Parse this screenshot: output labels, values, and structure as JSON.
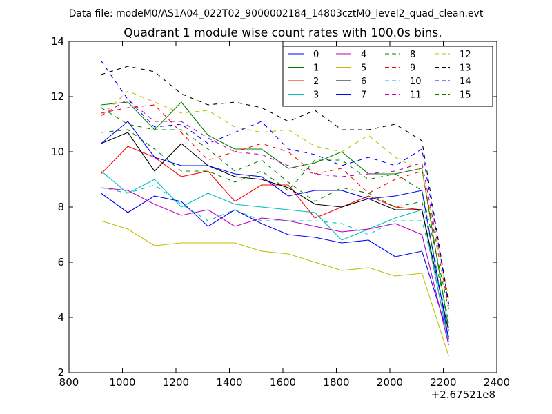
{
  "chart_data": {
    "type": "line",
    "suptitle": "Data file: modeM0/AS1A04_022T02_9000002184_14803cztM0_level2_quad_clean.evt",
    "title": "Quadrant 1 module wise count rates with 100.0s bins.",
    "xlabel": "",
    "ylabel": "",
    "x_offset_label": "+2.67521e8",
    "xlim": [
      800,
      2400
    ],
    "ylim": [
      2,
      14
    ],
    "xticks": [
      800,
      1000,
      1200,
      1400,
      1600,
      1800,
      2000,
      2200,
      2400
    ],
    "yticks": [
      2,
      4,
      6,
      8,
      10,
      12,
      14
    ],
    "legend_position": "top-right",
    "legend_columns": 4,
    "x": [
      920,
      1020,
      1120,
      1220,
      1320,
      1420,
      1520,
      1620,
      1720,
      1820,
      1920,
      2020,
      2120,
      2220
    ],
    "series": [
      {
        "name": "0",
        "color": "#0000ff",
        "dash": "solid",
        "values": [
          8.5,
          7.8,
          8.4,
          8.2,
          7.3,
          7.9,
          7.4,
          7.0,
          6.9,
          6.7,
          6.8,
          6.2,
          6.4,
          3.3
        ]
      },
      {
        "name": "1",
        "color": "#008000",
        "dash": "solid",
        "values": [
          11.7,
          11.8,
          10.8,
          11.8,
          10.6,
          10.1,
          10.1,
          9.4,
          9.6,
          10.0,
          9.2,
          9.2,
          9.4,
          3.6
        ]
      },
      {
        "name": "2",
        "color": "#ff0000",
        "dash": "solid",
        "values": [
          9.2,
          10.2,
          9.8,
          9.1,
          9.3,
          8.2,
          8.8,
          8.8,
          7.6,
          8.0,
          8.4,
          8.0,
          7.9,
          3.1
        ]
      },
      {
        "name": "3",
        "color": "#00bfbf",
        "dash": "solid",
        "values": [
          9.3,
          8.5,
          9.0,
          8.0,
          8.5,
          8.1,
          8.0,
          7.9,
          7.8,
          6.8,
          7.2,
          7.6,
          7.9,
          3.1
        ]
      },
      {
        "name": "4",
        "color": "#bf00bf",
        "dash": "solid",
        "values": [
          8.7,
          8.6,
          8.1,
          7.7,
          7.9,
          7.3,
          7.6,
          7.5,
          7.3,
          7.1,
          7.2,
          7.4,
          7.0,
          3.0
        ]
      },
      {
        "name": "5",
        "color": "#bfbf00",
        "dash": "solid",
        "values": [
          7.5,
          7.2,
          6.6,
          6.7,
          6.7,
          6.7,
          6.4,
          6.3,
          6.0,
          5.7,
          5.8,
          5.5,
          5.6,
          2.6
        ]
      },
      {
        "name": "6",
        "color": "#000000",
        "dash": "solid",
        "values": [
          10.3,
          10.7,
          9.3,
          10.3,
          9.5,
          9.1,
          9.0,
          8.7,
          8.1,
          8.0,
          8.3,
          7.9,
          7.9,
          3.5
        ]
      },
      {
        "name": "7",
        "color": "#0000ff",
        "dash": "solid",
        "values": [
          10.3,
          11.1,
          9.8,
          9.5,
          9.5,
          9.2,
          9.1,
          8.4,
          8.6,
          8.6,
          8.3,
          8.4,
          8.6,
          3.2
        ]
      },
      {
        "name": "8",
        "color": "#008000",
        "dash": "dashed",
        "values": [
          11.6,
          11.0,
          10.8,
          10.8,
          10.1,
          9.3,
          9.7,
          8.9,
          8.2,
          8.7,
          8.5,
          8.0,
          8.2,
          3.9
        ]
      },
      {
        "name": "9",
        "color": "#ff0000",
        "dash": "dashed",
        "values": [
          11.4,
          11.6,
          11.7,
          10.7,
          9.7,
          10.0,
          10.3,
          10.0,
          9.2,
          9.4,
          8.5,
          9.0,
          9.3,
          4.4
        ]
      },
      {
        "name": "10",
        "color": "#00bfbf",
        "dash": "dashed",
        "values": [
          8.7,
          8.5,
          8.8,
          8.1,
          7.5,
          7.9,
          7.5,
          7.5,
          7.5,
          7.4,
          7.0,
          7.5,
          7.5,
          3.8
        ]
      },
      {
        "name": "11",
        "color": "#bf00bf",
        "dash": "dashed",
        "values": [
          11.3,
          11.9,
          11.1,
          11.1,
          10.5,
          10.0,
          9.9,
          9.5,
          9.2,
          9.1,
          9.2,
          9.3,
          9.6,
          4.6
        ]
      },
      {
        "name": "12",
        "color": "#bfbf00",
        "dash": "dashed",
        "values": [
          11.3,
          12.2,
          11.8,
          11.4,
          11.5,
          10.9,
          10.7,
          10.8,
          10.2,
          10.0,
          10.6,
          9.8,
          9.3,
          4.7
        ]
      },
      {
        "name": "13",
        "color": "#000000",
        "dash": "dashed",
        "values": [
          12.8,
          13.1,
          12.9,
          12.1,
          11.7,
          11.8,
          11.6,
          11.1,
          11.5,
          10.8,
          10.8,
          11.0,
          10.4,
          4.5
        ]
      },
      {
        "name": "14",
        "color": "#0000ff",
        "dash": "dashed",
        "values": [
          13.3,
          11.9,
          10.9,
          11.0,
          10.3,
          10.7,
          11.1,
          10.1,
          9.9,
          9.5,
          9.8,
          9.5,
          10.1,
          4.5
        ]
      },
      {
        "name": "15",
        "color": "#008000",
        "dash": "dashed",
        "values": [
          10.7,
          10.8,
          10.1,
          9.3,
          9.3,
          8.9,
          9.3,
          8.6,
          9.7,
          9.7,
          9.0,
          9.2,
          8.6,
          4.3
        ]
      }
    ]
  }
}
